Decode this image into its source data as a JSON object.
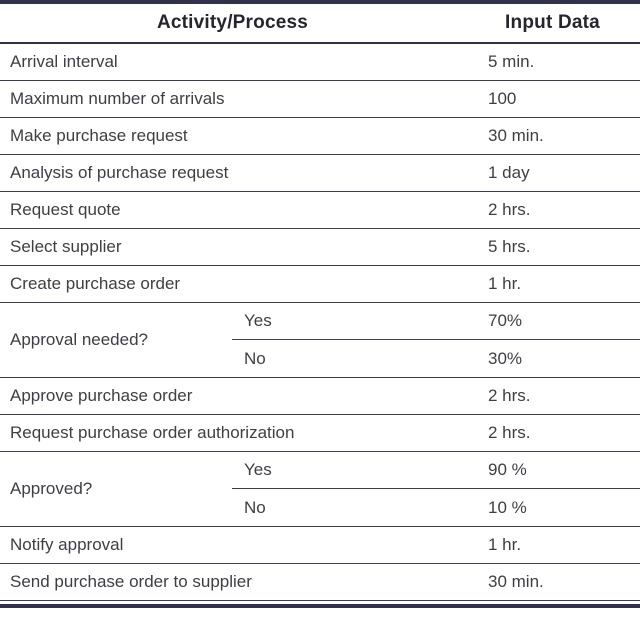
{
  "chart_data": {
    "type": "table",
    "columns": [
      "Activity/Process",
      "Input Data"
    ],
    "rows": [
      {
        "activity": "Arrival interval",
        "value": "5 min."
      },
      {
        "activity": "Maximum number of arrivals",
        "value": "100"
      },
      {
        "activity": "Make purchase request",
        "value": "30 min."
      },
      {
        "activity": "Analysis of purchase request",
        "value": "1 day"
      },
      {
        "activity": "Request quote",
        "value": "2 hrs."
      },
      {
        "activity": "Select supplier",
        "value": "5 hrs."
      },
      {
        "activity": "Create purchase order",
        "value": "1 hr."
      },
      {
        "activity": "Approval needed?",
        "branches": [
          {
            "label": "Yes",
            "value": "70%"
          },
          {
            "label": "No",
            "value": "30%"
          }
        ]
      },
      {
        "activity": "Approve purchase order",
        "value": "2 hrs."
      },
      {
        "activity": "Request purchase order authorization",
        "value": "2 hrs."
      },
      {
        "activity": "Approved?",
        "branches": [
          {
            "label": "Yes",
            "value": "90 %"
          },
          {
            "label": "No",
            "value": "10 %"
          }
        ]
      },
      {
        "activity": "Notify approval",
        "value": "1 hr."
      },
      {
        "activity": "Send purchase order to supplier",
        "value": "30 min."
      }
    ],
    "layout": {
      "grid": "horizontal-rules-only",
      "header_bold": true
    },
    "colors": {
      "rule": "#31314e",
      "thin_rule": "#3c3c58",
      "text": "#3e3e45",
      "header_text": "#25252e",
      "background": "#ffffff"
    }
  }
}
